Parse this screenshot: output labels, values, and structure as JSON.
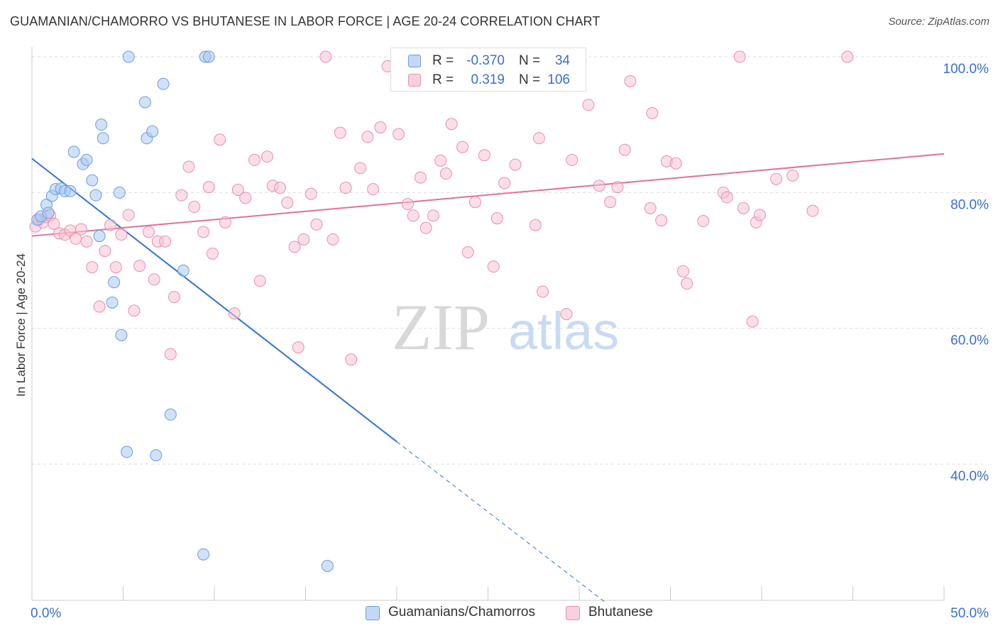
{
  "title": "GUAMANIAN/CHAMORRO VS BHUTANESE IN LABOR FORCE | AGE 20-24 CORRELATION CHART",
  "source": "Source: ZipAtlas.com",
  "watermark": {
    "zip": "ZIP",
    "atlas": "atlas"
  },
  "legend": {
    "rows": [
      {
        "r_label": "R =",
        "r_value": "-0.370",
        "n_label": "N =",
        "n_value": "34"
      },
      {
        "r_label": "R =",
        "r_value": "0.319",
        "n_label": "N =",
        "n_value": "106"
      }
    ]
  },
  "bottom_legend": [
    "Guamanians/Chamorros",
    "Bhutanese"
  ],
  "chart_data": {
    "type": "scatter",
    "xlabel": "",
    "ylabel": "In Labor Force | Age 20-24",
    "xlim": [
      0,
      50
    ],
    "ylim": [
      22,
      102
    ],
    "x_tick_labels": [
      "0.0%",
      "50.0%"
    ],
    "y_ticks": [
      40,
      60,
      80,
      100
    ],
    "y_tick_labels": [
      "40.0%",
      "60.0%",
      "80.0%",
      "100.0%"
    ],
    "grid": "horizontal dashed",
    "colors": {
      "blue_fill": "#aac8f2",
      "blue_stroke": "#6a9ee0",
      "blue_line": "#2f74d0",
      "pink_fill": "#f7c3d3",
      "pink_stroke": "#e890ab",
      "pink_line": "#e0719a",
      "tick_label": "#3a6fc9"
    },
    "series": [
      {
        "name": "Guamanians/Chamorros",
        "trend": {
          "x": [
            0,
            20
          ],
          "y": [
            85.0,
            43.3
          ],
          "dashed_to": [
            31.5,
            19.5
          ]
        },
        "points": [
          [
            0.3,
            76.0
          ],
          [
            0.5,
            76.5
          ],
          [
            0.8,
            78.2
          ],
          [
            0.9,
            77.0
          ],
          [
            1.1,
            79.5
          ],
          [
            1.3,
            80.5
          ],
          [
            1.6,
            80.6
          ],
          [
            1.8,
            80.2
          ],
          [
            2.1,
            80.2
          ],
          [
            2.3,
            86.0
          ],
          [
            2.8,
            84.2
          ],
          [
            3.0,
            84.8
          ],
          [
            3.3,
            81.8
          ],
          [
            3.5,
            79.6
          ],
          [
            3.7,
            73.6
          ],
          [
            3.8,
            90.0
          ],
          [
            3.9,
            88.0
          ],
          [
            4.4,
            63.8
          ],
          [
            4.5,
            66.8
          ],
          [
            4.8,
            80.0
          ],
          [
            4.9,
            59.0
          ],
          [
            5.2,
            41.8
          ],
          [
            5.3,
            100.0
          ],
          [
            6.2,
            93.3
          ],
          [
            6.3,
            88.0
          ],
          [
            6.6,
            89.0
          ],
          [
            6.8,
            41.3
          ],
          [
            7.2,
            96.0
          ],
          [
            7.6,
            47.3
          ],
          [
            8.3,
            68.5
          ],
          [
            9.4,
            26.7
          ],
          [
            9.5,
            100.0
          ],
          [
            9.7,
            100.0
          ],
          [
            16.2,
            25.0
          ]
        ]
      },
      {
        "name": "Bhutanese",
        "trend": {
          "x": [
            0,
            50
          ],
          "y": [
            73.6,
            85.7
          ]
        },
        "points": [
          [
            0.2,
            75.0
          ],
          [
            0.4,
            76.0
          ],
          [
            0.6,
            75.6
          ],
          [
            0.8,
            76.4
          ],
          [
            1.0,
            76.6
          ],
          [
            1.2,
            75.4
          ],
          [
            1.5,
            74.0
          ],
          [
            1.8,
            73.8
          ],
          [
            2.1,
            74.4
          ],
          [
            2.4,
            73.2
          ],
          [
            2.7,
            74.6
          ],
          [
            3.0,
            72.8
          ],
          [
            3.3,
            69.0
          ],
          [
            3.7,
            63.2
          ],
          [
            4.0,
            71.4
          ],
          [
            4.3,
            75.2
          ],
          [
            4.6,
            69.0
          ],
          [
            4.9,
            73.8
          ],
          [
            5.3,
            76.7
          ],
          [
            5.6,
            62.6
          ],
          [
            5.9,
            69.2
          ],
          [
            6.4,
            74.2
          ],
          [
            6.7,
            67.2
          ],
          [
            6.9,
            72.8
          ],
          [
            7.3,
            72.8
          ],
          [
            7.6,
            56.2
          ],
          [
            7.8,
            64.6
          ],
          [
            8.2,
            79.6
          ],
          [
            8.6,
            83.8
          ],
          [
            8.9,
            77.9
          ],
          [
            9.4,
            74.2
          ],
          [
            9.7,
            80.8
          ],
          [
            9.9,
            71.0
          ],
          [
            10.3,
            87.8
          ],
          [
            10.6,
            75.6
          ],
          [
            11.1,
            62.2
          ],
          [
            11.3,
            80.4
          ],
          [
            11.7,
            79.2
          ],
          [
            12.2,
            84.8
          ],
          [
            12.5,
            67.0
          ],
          [
            12.9,
            85.3
          ],
          [
            13.2,
            81.0
          ],
          [
            13.6,
            80.7
          ],
          [
            14.0,
            78.5
          ],
          [
            14.4,
            72.0
          ],
          [
            14.6,
            57.2
          ],
          [
            14.9,
            73.1
          ],
          [
            15.3,
            79.8
          ],
          [
            15.6,
            75.3
          ],
          [
            16.1,
            100.0
          ],
          [
            16.5,
            73.1
          ],
          [
            16.9,
            88.8
          ],
          [
            17.2,
            80.7
          ],
          [
            17.5,
            55.4
          ],
          [
            18.0,
            83.6
          ],
          [
            18.4,
            88.2
          ],
          [
            18.7,
            80.5
          ],
          [
            19.1,
            89.6
          ],
          [
            19.5,
            98.6
          ],
          [
            20.1,
            88.6
          ],
          [
            20.6,
            78.3
          ],
          [
            20.9,
            76.6
          ],
          [
            21.3,
            82.2
          ],
          [
            21.6,
            74.8
          ],
          [
            22.0,
            76.6
          ],
          [
            22.4,
            84.7
          ],
          [
            22.7,
            82.8
          ],
          [
            23.0,
            90.1
          ],
          [
            23.6,
            86.7
          ],
          [
            23.9,
            71.2
          ],
          [
            24.3,
            78.6
          ],
          [
            24.8,
            85.5
          ],
          [
            25.3,
            69.1
          ],
          [
            25.5,
            76.2
          ],
          [
            25.9,
            81.4
          ],
          [
            26.5,
            84.1
          ],
          [
            27.6,
            75.2
          ],
          [
            27.8,
            88.0
          ],
          [
            28.0,
            65.4
          ],
          [
            29.3,
            62.1
          ],
          [
            29.6,
            84.8
          ],
          [
            30.5,
            92.9
          ],
          [
            31.1,
            81.0
          ],
          [
            31.7,
            78.6
          ],
          [
            32.1,
            80.8
          ],
          [
            32.5,
            86.3
          ],
          [
            32.8,
            96.4
          ],
          [
            33.9,
            77.7
          ],
          [
            34.0,
            91.7
          ],
          [
            34.5,
            75.9
          ],
          [
            34.8,
            84.6
          ],
          [
            35.3,
            84.3
          ],
          [
            35.7,
            68.4
          ],
          [
            35.9,
            66.6
          ],
          [
            36.8,
            75.8
          ],
          [
            37.9,
            80.0
          ],
          [
            38.1,
            79.3
          ],
          [
            38.8,
            100.0
          ],
          [
            39.0,
            77.7
          ],
          [
            39.5,
            61.0
          ],
          [
            39.7,
            75.6
          ],
          [
            39.9,
            76.7
          ],
          [
            40.8,
            82.0
          ],
          [
            41.7,
            82.5
          ],
          [
            42.8,
            77.3
          ],
          [
            44.7,
            100.0
          ]
        ]
      }
    ]
  }
}
